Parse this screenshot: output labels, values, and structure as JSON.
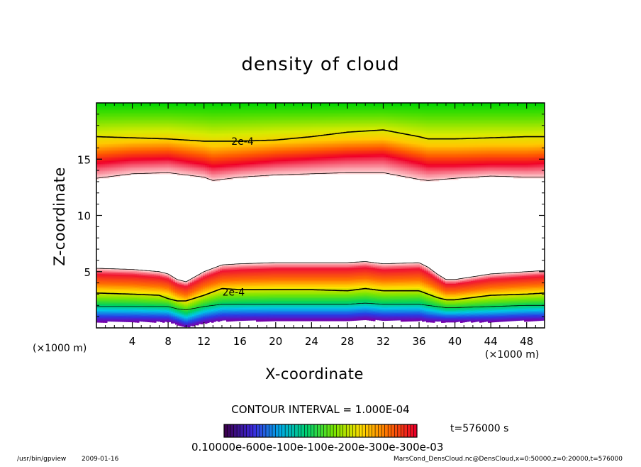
{
  "colors": {
    "frame": "#000000",
    "background": "#ffffff",
    "contour": "#000000"
  },
  "footer": {
    "program": "/usr/bin/gpview",
    "date": "2009-01-16",
    "source": "MarsCond_DensCloud.nc@DensCloud,x=0:50000,z=0:20000,t=576000"
  },
  "chart_data": {
    "type": "heatmap",
    "title": "density of cloud",
    "xlabel": "X-coordinate",
    "ylabel": "Z-coordinate",
    "x_unit": "(×1000 m)",
    "y_unit": "(×1000 m)",
    "xlim": [
      0,
      50
    ],
    "ylim": [
      0,
      20
    ],
    "x_ticks": [
      4,
      8,
      12,
      16,
      20,
      24,
      28,
      32,
      36,
      40,
      44,
      48
    ],
    "y_ticks": [
      5,
      10,
      15
    ],
    "contour_interval": "CONTOUR INTERVAL = 1.000E-04",
    "time_label": "t=576000 s",
    "colorbar_labels": "0.10000e-600e-100e-100e-200e-300e-300e-03",
    "contour_labels": [
      {
        "text": "2e-4",
        "x": 16.3,
        "z": 16.6
      },
      {
        "text": "2e-4",
        "x": 15.3,
        "z": 3.2
      }
    ],
    "upper_layer": {
      "x": [
        0,
        4,
        8,
        12,
        13,
        16,
        20,
        24,
        28,
        32,
        36,
        37,
        40,
        44,
        48,
        50
      ],
      "white_edge_z": [
        13.3,
        13.7,
        13.8,
        13.4,
        13.1,
        13.4,
        13.6,
        13.7,
        13.8,
        13.8,
        13.2,
        13.1,
        13.3,
        13.5,
        13.4,
        13.4
      ],
      "peak_z": [
        14.7,
        15.0,
        15.1,
        14.6,
        14.4,
        14.6,
        14.9,
        15.1,
        15.3,
        15.4,
        14.7,
        14.5,
        14.5,
        14.6,
        14.6,
        14.7
      ],
      "contour_z": [
        17.0,
        16.9,
        16.8,
        16.6,
        16.6,
        16.6,
        16.7,
        17.0,
        17.4,
        17.6,
        17.0,
        16.8,
        16.8,
        16.9,
        17.0,
        17.0
      ]
    },
    "lower_layer": {
      "x": [
        0,
        4,
        7,
        8,
        9,
        10,
        12,
        14,
        16,
        20,
        24,
        28,
        30,
        32,
        36,
        37,
        38,
        39,
        40,
        44,
        48,
        50
      ],
      "top_z": [
        5.3,
        5.2,
        5.0,
        4.8,
        4.3,
        4.1,
        5.0,
        5.6,
        5.7,
        5.8,
        5.8,
        5.8,
        5.9,
        5.7,
        5.8,
        5.4,
        4.8,
        4.3,
        4.3,
        4.8,
        5.0,
        5.1
      ],
      "contour_z": [
        3.1,
        3.0,
        2.9,
        2.6,
        2.4,
        2.4,
        2.9,
        3.5,
        3.4,
        3.4,
        3.4,
        3.3,
        3.5,
        3.3,
        3.3,
        3.0,
        2.7,
        2.5,
        2.5,
        2.9,
        3.0,
        3.1
      ],
      "low_contour_z": [
        1.9,
        1.9,
        1.9,
        1.9,
        1.7,
        1.6,
        1.9,
        2.1,
        2.1,
        2.1,
        2.1,
        2.1,
        2.2,
        2.1,
        2.1,
        2.0,
        1.9,
        1.8,
        1.8,
        1.9,
        2.0,
        2.0
      ],
      "base_z": [
        0.6,
        0.6,
        0.6,
        0.6,
        0.4,
        0.1,
        0.5,
        0.7,
        0.7,
        0.7,
        0.7,
        0.7,
        0.8,
        0.7,
        0.7,
        0.6,
        0.6,
        0.6,
        0.6,
        0.6,
        0.7,
        0.7
      ]
    }
  }
}
